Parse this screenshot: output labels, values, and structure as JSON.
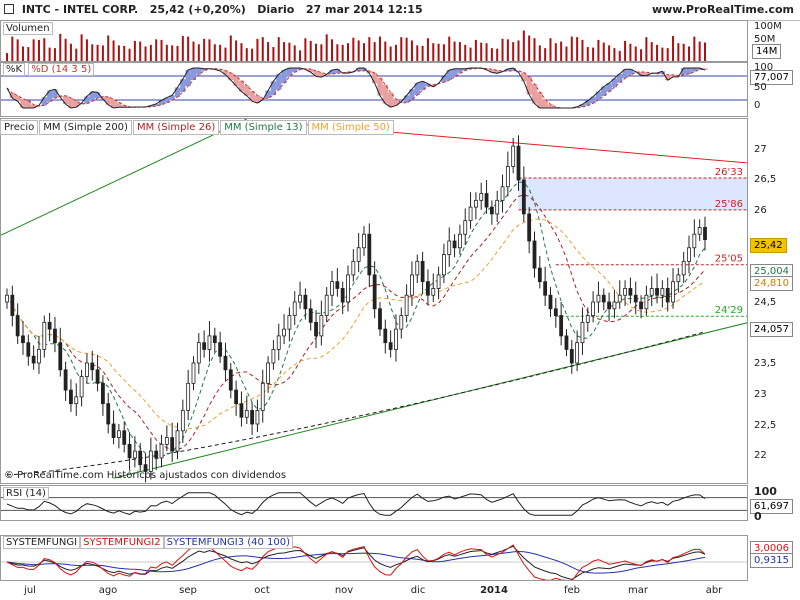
{
  "header": {
    "ticker": "INTC - INTEL CORP.",
    "price": "25,42 (+0,20%)",
    "period": "Diario",
    "datetime": "27 mar 2014 12:15",
    "site": "www.ProRealTime.com"
  },
  "volume_panel": {
    "label": "Volumen",
    "ticks": [
      "100M",
      "50M"
    ],
    "current": "14M"
  },
  "stoch_panel": {
    "label_k": "%K",
    "label_d": "%D (14 3 5)",
    "ticks": [
      "100",
      "50",
      "0"
    ],
    "current": "77,007"
  },
  "price_panel": {
    "tabs": [
      "Precio",
      "MM (Simple 200)",
      "MM (Simple 26)",
      "MM (Simple 13)",
      "MM (Simple 50)"
    ],
    "ticks": [
      "27",
      "26,5",
      "26",
      "25,5",
      "25",
      "24,5",
      "24",
      "23,5",
      "23",
      "22,5",
      "22"
    ],
    "level_labels": [
      "26'33",
      "25'86",
      "25'05",
      "24'29"
    ],
    "current_tags": [
      "25,42",
      "25,004",
      "24,810",
      "24,057"
    ],
    "copyright": "© ProRealTime.com  Históricos ajustados con dividendos"
  },
  "rsi_panel": {
    "label": "RSI (14)",
    "ticks": [
      "100",
      "0"
    ],
    "current": "61,697"
  },
  "sys_panel": {
    "labels": [
      "SYSTEMFUNGI",
      "SYSTEMFUNGI2",
      "SYSTEMFUNGI3 (40 100)"
    ],
    "current_tags": [
      "3,0006",
      "0,9315"
    ]
  },
  "x_axis": {
    "labels": [
      "jul",
      "ago",
      "sep",
      "oct",
      "nov",
      "dic",
      "2014",
      "feb",
      "mar",
      "abr"
    ]
  },
  "colors": {
    "candle": "#222222",
    "ma200": "#222222",
    "ma26": "#aa2222",
    "ma13": "#227744",
    "ma50": "#f0a030",
    "trend_up": "#228822",
    "trend_down": "#dd2222",
    "level": "#cc2222",
    "support": "#22aa22",
    "zone": "#dde6ff",
    "volume": "#aa1111",
    "stoch_k": "#222222",
    "stoch_d": "#cc3333",
    "rsi": "#222222",
    "sys1": "#222222",
    "sys2": "#dd1111",
    "sys3": "#2233aa"
  },
  "chart_data": {
    "type": "candlestick",
    "symbol": "INTC",
    "ylim": [
      21.8,
      27.2
    ],
    "x_range": [
      "2013-07",
      "2014-04"
    ],
    "grid": false,
    "moving_averages": [
      "MM (Simple 200)",
      "MM (Simple 26)",
      "MM (Simple 13)",
      "MM (Simple 50)"
    ],
    "levels": [
      26.33,
      25.86,
      25.05,
      24.29
    ],
    "last_close": 25.42,
    "last_values": {
      "MM (Simple 13)": 25.004,
      "MM (Simple 50)": 24.81,
      "MM (Simple 200)": 24.057
    },
    "close_series": [
      24.6,
      24.3,
      24.0,
      23.9,
      23.7,
      23.6,
      23.8,
      24.2,
      24.1,
      23.9,
      23.5,
      23.2,
      23.0,
      23.1,
      23.4,
      23.6,
      23.5,
      23.3,
      23.0,
      22.7,
      22.5,
      22.6,
      22.4,
      22.2,
      22.3,
      22.1,
      22.0,
      22.3,
      22.2,
      22.4,
      22.5,
      22.3,
      22.6,
      22.9,
      23.3,
      23.6,
      23.9,
      23.8,
      24.0,
      23.9,
      23.7,
      23.5,
      23.2,
      23.0,
      22.8,
      22.9,
      22.7,
      22.9,
      23.3,
      23.6,
      23.8,
      24.0,
      24.1,
      24.3,
      24.5,
      24.6,
      24.4,
      24.2,
      24.0,
      24.3,
      24.6,
      24.8,
      24.7,
      24.5,
      24.9,
      25.1,
      25.3,
      25.5,
      24.9,
      24.4,
      24.1,
      23.9,
      23.8,
      24.1,
      24.3,
      24.6,
      24.9,
      25.1,
      24.8,
      24.6,
      24.7,
      24.9,
      25.2,
      25.4,
      25.3,
      25.5,
      25.7,
      25.9,
      26.0,
      26.1,
      25.9,
      25.8,
      26.0,
      26.2,
      26.5,
      26.8,
      26.3,
      25.8,
      25.4,
      25.0,
      24.8,
      24.6,
      24.4,
      24.3,
      24.0,
      23.8,
      23.6,
      23.9,
      24.2,
      24.3,
      24.5,
      24.6,
      24.5,
      24.4,
      24.5,
      24.6,
      24.7,
      24.6,
      24.5,
      24.4,
      24.6,
      24.7,
      24.6,
      24.7,
      24.5,
      24.8,
      24.9,
      25.1,
      25.3,
      25.5,
      25.6,
      25.42
    ],
    "x_ticks": [
      "jul",
      "ago",
      "sep",
      "oct",
      "nov",
      "dic",
      "2014",
      "feb",
      "mar",
      "abr"
    ]
  }
}
